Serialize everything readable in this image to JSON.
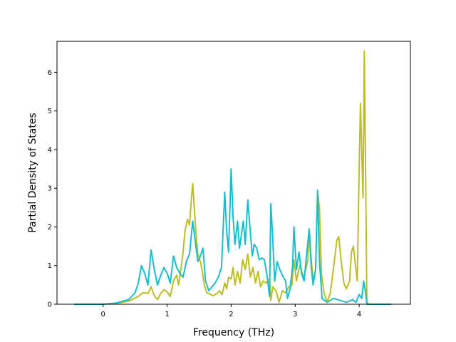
{
  "chart_data": {
    "type": "line",
    "title": "",
    "xlabel": "Frequency (THz)",
    "ylabel": "Partial Density of States",
    "xlim": [
      -0.72,
      4.8
    ],
    "ylim": [
      0,
      6.8
    ],
    "xticks": [
      0,
      1,
      2,
      3,
      4
    ],
    "yticks": [
      0,
      1,
      2,
      3,
      4,
      5,
      6
    ],
    "grid": false,
    "legend": "none",
    "colors": [
      "#bcbd22",
      "#17becf"
    ],
    "series": [
      {
        "color": "#bcbd22",
        "points": [
          [
            -0.45,
            0
          ],
          [
            0,
            0
          ],
          [
            0.2,
            0.02
          ],
          [
            0.4,
            0.08
          ],
          [
            0.55,
            0.2
          ],
          [
            0.62,
            0.3
          ],
          [
            0.7,
            0.28
          ],
          [
            0.75,
            0.45
          ],
          [
            0.8,
            0.22
          ],
          [
            0.85,
            0.12
          ],
          [
            0.9,
            0.28
          ],
          [
            0.95,
            0.38
          ],
          [
            1.0,
            0.32
          ],
          [
            1.05,
            0.2
          ],
          [
            1.1,
            0.6
          ],
          [
            1.15,
            0.75
          ],
          [
            1.18,
            0.5
          ],
          [
            1.22,
            0.95
          ],
          [
            1.25,
            1.35
          ],
          [
            1.28,
            1.9
          ],
          [
            1.32,
            2.2
          ],
          [
            1.35,
            2.05
          ],
          [
            1.38,
            2.75
          ],
          [
            1.4,
            3.12
          ],
          [
            1.42,
            2.6
          ],
          [
            1.45,
            1.85
          ],
          [
            1.48,
            1.3
          ],
          [
            1.52,
            1.1
          ],
          [
            1.55,
            0.85
          ],
          [
            1.58,
            0.5
          ],
          [
            1.62,
            0.3
          ],
          [
            1.68,
            0.25
          ],
          [
            1.72,
            0.22
          ],
          [
            1.78,
            0.28
          ],
          [
            1.82,
            0.35
          ],
          [
            1.86,
            0.25
          ],
          [
            1.9,
            0.55
          ],
          [
            1.93,
            0.4
          ],
          [
            1.96,
            0.7
          ],
          [
            2.0,
            0.65
          ],
          [
            2.03,
            0.95
          ],
          [
            2.06,
            0.5
          ],
          [
            2.1,
            0.85
          ],
          [
            2.14,
            0.55
          ],
          [
            2.18,
            1.15
          ],
          [
            2.22,
            0.9
          ],
          [
            2.26,
            1.3
          ],
          [
            2.3,
            0.7
          ],
          [
            2.34,
            0.95
          ],
          [
            2.38,
            0.55
          ],
          [
            2.42,
            0.85
          ],
          [
            2.46,
            0.45
          ],
          [
            2.5,
            0.6
          ],
          [
            2.55,
            0.55
          ],
          [
            2.6,
            0.65
          ],
          [
            2.62,
            0.1
          ],
          [
            2.65,
            0.45
          ],
          [
            2.7,
            0.35
          ],
          [
            2.75,
            0.05
          ],
          [
            2.8,
            0.35
          ],
          [
            2.85,
            0.3
          ],
          [
            2.9,
            0.45
          ],
          [
            2.95,
            0.5
          ],
          [
            2.98,
            1.15
          ],
          [
            3.02,
            0.6
          ],
          [
            3.05,
            0.85
          ],
          [
            3.08,
            1.05
          ],
          [
            3.12,
            0.7
          ],
          [
            3.16,
            0.85
          ],
          [
            3.2,
            1.15
          ],
          [
            3.22,
            1.95
          ],
          [
            3.25,
            1.2
          ],
          [
            3.28,
            0.6
          ],
          [
            3.32,
            0.9
          ],
          [
            3.35,
            2.9
          ],
          [
            3.38,
            2.5
          ],
          [
            3.41,
            0.8
          ],
          [
            3.45,
            0.3
          ],
          [
            3.5,
            0.05
          ],
          [
            3.55,
            0.3
          ],
          [
            3.6,
            0.95
          ],
          [
            3.65,
            1.65
          ],
          [
            3.68,
            1.75
          ],
          [
            3.72,
            1.1
          ],
          [
            3.76,
            0.55
          ],
          [
            3.8,
            0.4
          ],
          [
            3.85,
            0.6
          ],
          [
            3.88,
            1.35
          ],
          [
            3.91,
            1.5
          ],
          [
            3.94,
            1.05
          ],
          [
            3.97,
            0.6
          ],
          [
            4.0,
            3.5
          ],
          [
            4.02,
            5.2
          ],
          [
            4.04,
            4.0
          ],
          [
            4.06,
            2.75
          ],
          [
            4.08,
            6.55
          ],
          [
            4.1,
            3.5
          ],
          [
            4.12,
            0.05
          ],
          [
            4.15,
            0
          ],
          [
            4.5,
            0
          ]
        ]
      },
      {
        "color": "#17becf",
        "points": [
          [
            -0.45,
            0
          ],
          [
            0,
            0
          ],
          [
            0.2,
            0.03
          ],
          [
            0.4,
            0.12
          ],
          [
            0.5,
            0.3
          ],
          [
            0.55,
            0.55
          ],
          [
            0.6,
            1.0
          ],
          [
            0.65,
            0.8
          ],
          [
            0.7,
            0.5
          ],
          [
            0.75,
            1.4
          ],
          [
            0.8,
            0.9
          ],
          [
            0.85,
            0.5
          ],
          [
            0.9,
            0.75
          ],
          [
            0.95,
            0.95
          ],
          [
            1.0,
            0.8
          ],
          [
            1.05,
            0.55
          ],
          [
            1.1,
            1.25
          ],
          [
            1.15,
            0.95
          ],
          [
            1.2,
            0.8
          ],
          [
            1.25,
            0.7
          ],
          [
            1.3,
            1.1
          ],
          [
            1.35,
            1.3
          ],
          [
            1.4,
            2.15
          ],
          [
            1.43,
            1.75
          ],
          [
            1.48,
            1.1
          ],
          [
            1.52,
            1.25
          ],
          [
            1.56,
            1.45
          ],
          [
            1.6,
            0.6
          ],
          [
            1.65,
            0.35
          ],
          [
            1.7,
            0.45
          ],
          [
            1.75,
            0.55
          ],
          [
            1.8,
            0.7
          ],
          [
            1.85,
            0.95
          ],
          [
            1.9,
            2.9
          ],
          [
            1.93,
            1.9
          ],
          [
            1.96,
            1.35
          ],
          [
            2.0,
            3.5
          ],
          [
            2.03,
            2.25
          ],
          [
            2.06,
            1.55
          ],
          [
            2.1,
            2.15
          ],
          [
            2.13,
            1.45
          ],
          [
            2.16,
            1.8
          ],
          [
            2.19,
            2.15
          ],
          [
            2.22,
            1.55
          ],
          [
            2.26,
            2.7
          ],
          [
            2.3,
            1.85
          ],
          [
            2.33,
            1.25
          ],
          [
            2.36,
            1.55
          ],
          [
            2.4,
            1.45
          ],
          [
            2.44,
            1.15
          ],
          [
            2.48,
            1.2
          ],
          [
            2.52,
            1.15
          ],
          [
            2.56,
            0.75
          ],
          [
            2.6,
            0.2
          ],
          [
            2.62,
            2.6
          ],
          [
            2.65,
            1.7
          ],
          [
            2.68,
            0.6
          ],
          [
            2.72,
            1.1
          ],
          [
            2.76,
            0.9
          ],
          [
            2.8,
            0.75
          ],
          [
            2.85,
            0.6
          ],
          [
            2.88,
            0.15
          ],
          [
            2.92,
            0.4
          ],
          [
            2.96,
            1.0
          ],
          [
            2.98,
            2.0
          ],
          [
            3.02,
            0.9
          ],
          [
            3.06,
            1.35
          ],
          [
            3.1,
            0.8
          ],
          [
            3.14,
            0.6
          ],
          [
            3.18,
            1.3
          ],
          [
            3.22,
            1.95
          ],
          [
            3.25,
            1.0
          ],
          [
            3.28,
            0.5
          ],
          [
            3.32,
            0.9
          ],
          [
            3.35,
            2.95
          ],
          [
            3.38,
            1.1
          ],
          [
            3.42,
            0.15
          ],
          [
            3.5,
            0.05
          ],
          [
            3.6,
            0.15
          ],
          [
            3.7,
            0.1
          ],
          [
            3.8,
            0.05
          ],
          [
            3.9,
            0.12
          ],
          [
            3.95,
            0.05
          ],
          [
            4.0,
            0.25
          ],
          [
            4.04,
            0.15
          ],
          [
            4.07,
            0.6
          ],
          [
            4.1,
            0.3
          ],
          [
            4.12,
            0
          ],
          [
            4.5,
            0
          ]
        ]
      }
    ]
  }
}
